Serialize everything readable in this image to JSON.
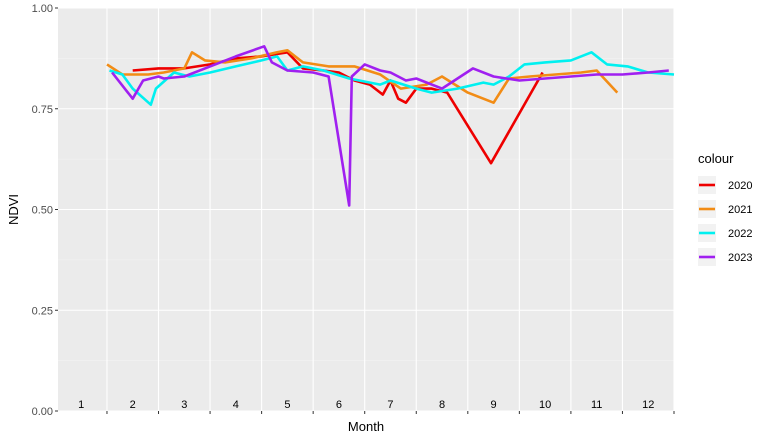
{
  "chart_data": {
    "type": "line",
    "title": "",
    "xlabel": "Month",
    "ylabel": "NDVI",
    "ylim": [
      0,
      1
    ],
    "yticks": [
      "0.00",
      "0.25",
      "0.50",
      "0.75",
      "1.00"
    ],
    "xlim": [
      0.55,
      12.5
    ],
    "month_labels": [
      "1",
      "2",
      "3",
      "4",
      "5",
      "6",
      "7",
      "8",
      "9",
      "10",
      "11",
      "12"
    ],
    "grid": true,
    "legend": {
      "title": "colour",
      "position": "right"
    },
    "series": [
      {
        "name": "2020",
        "color": "#ee0000",
        "x": [
          2.0,
          2.5,
          3.0,
          3.5,
          4.0,
          4.5,
          5.0,
          5.3,
          5.7,
          6.0,
          6.3,
          6.6,
          6.85,
          7.0,
          7.15,
          7.3,
          7.5,
          7.8,
          8.1,
          8.95,
          9.95
        ],
        "y": [
          0.845,
          0.85,
          0.85,
          0.86,
          0.875,
          0.88,
          0.89,
          0.85,
          0.845,
          0.84,
          0.82,
          0.81,
          0.785,
          0.82,
          0.775,
          0.765,
          0.8,
          0.8,
          0.79,
          0.615,
          0.84
        ]
      },
      {
        "name": "2021",
        "color": "#f28c15",
        "x": [
          1.5,
          1.8,
          2.0,
          2.3,
          2.6,
          3.0,
          3.15,
          3.4,
          3.8,
          4.3,
          4.8,
          5.0,
          5.3,
          5.8,
          6.3,
          6.8,
          7.2,
          7.7,
          8.0,
          8.5,
          9.0,
          9.3,
          9.7,
          10.2,
          10.7,
          11.0,
          11.4
        ],
        "y": [
          0.86,
          0.835,
          0.835,
          0.835,
          0.84,
          0.85,
          0.89,
          0.87,
          0.865,
          0.875,
          0.89,
          0.895,
          0.865,
          0.855,
          0.855,
          0.835,
          0.8,
          0.81,
          0.83,
          0.79,
          0.765,
          0.825,
          0.83,
          0.835,
          0.84,
          0.845,
          0.79
        ]
      },
      {
        "name": "2022",
        "color": "#00f0f0",
        "x": [
          1.55,
          1.8,
          2.0,
          2.35,
          2.45,
          2.8,
          3.1,
          3.5,
          4.0,
          4.5,
          4.8,
          5.0,
          5.3,
          5.7,
          6.2,
          6.8,
          7.0,
          7.5,
          7.8,
          8.3,
          8.8,
          9.0,
          9.3,
          9.6,
          10.0,
          10.5,
          10.9,
          11.2,
          11.6,
          12.0,
          12.5
        ],
        "y": [
          0.845,
          0.835,
          0.8,
          0.76,
          0.8,
          0.84,
          0.83,
          0.84,
          0.855,
          0.87,
          0.88,
          0.845,
          0.855,
          0.845,
          0.825,
          0.81,
          0.82,
          0.8,
          0.79,
          0.8,
          0.815,
          0.81,
          0.83,
          0.86,
          0.865,
          0.87,
          0.89,
          0.86,
          0.855,
          0.84,
          0.835
        ]
      },
      {
        "name": "2023",
        "color": "#a020f0",
        "x": [
          1.6,
          2.0,
          2.2,
          2.5,
          2.6,
          3.0,
          3.5,
          4.0,
          4.55,
          4.7,
          5.0,
          5.5,
          5.8,
          6.2,
          6.25,
          6.5,
          6.8,
          7.0,
          7.3,
          7.5,
          8.0,
          8.3,
          8.6,
          9.0,
          9.5,
          10.0,
          10.5,
          11.0,
          11.5,
          12.0,
          12.4
        ],
        "y": [
          0.84,
          0.775,
          0.82,
          0.83,
          0.825,
          0.83,
          0.855,
          0.88,
          0.905,
          0.865,
          0.845,
          0.84,
          0.83,
          0.51,
          0.83,
          0.86,
          0.845,
          0.84,
          0.82,
          0.825,
          0.8,
          0.825,
          0.85,
          0.83,
          0.82,
          0.825,
          0.83,
          0.835,
          0.835,
          0.84,
          0.845
        ]
      }
    ]
  }
}
